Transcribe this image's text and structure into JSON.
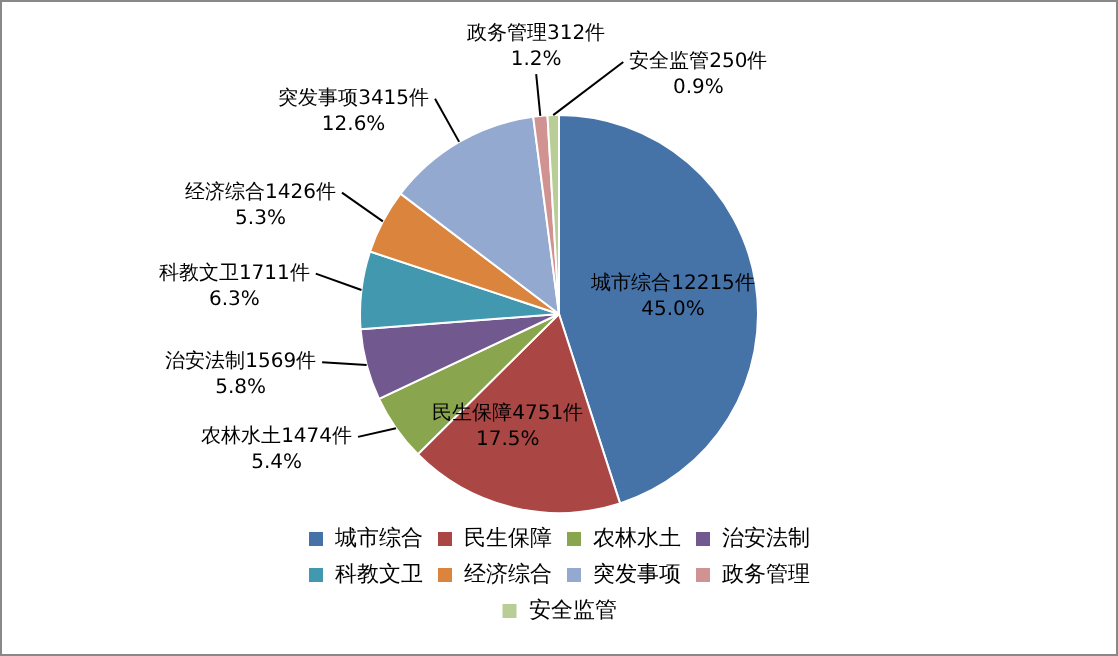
{
  "chart_data": {
    "type": "pie",
    "categories": [
      "城市综合",
      "民生保障",
      "农林水土",
      "治安法制",
      "科教文卫",
      "经济综合",
      "突发事项",
      "政务管理",
      "安全监管"
    ],
    "values": [
      12215,
      4751,
      1474,
      1569,
      1711,
      1426,
      3415,
      312,
      250
    ],
    "colors": [
      "#4572a7",
      "#aa4643",
      "#89a54e",
      "#71588f",
      "#4198af",
      "#db843d",
      "#93a9cf",
      "#d19392",
      "#b9cd96"
    ],
    "value_labels": [
      "城市综合12215件\n45.0%",
      "民生保障4751件\n17.5%",
      "农林水土1474件\n5.4%",
      "治安法制1569件\n5.8%",
      "科教文卫1711件\n6.3%",
      "经济综合1426件\n5.3%",
      "突发事项3415件\n12.6%",
      "政务管理312件\n1.2%",
      "安全监管250件\n0.9%"
    ],
    "legend": "bottom"
  }
}
